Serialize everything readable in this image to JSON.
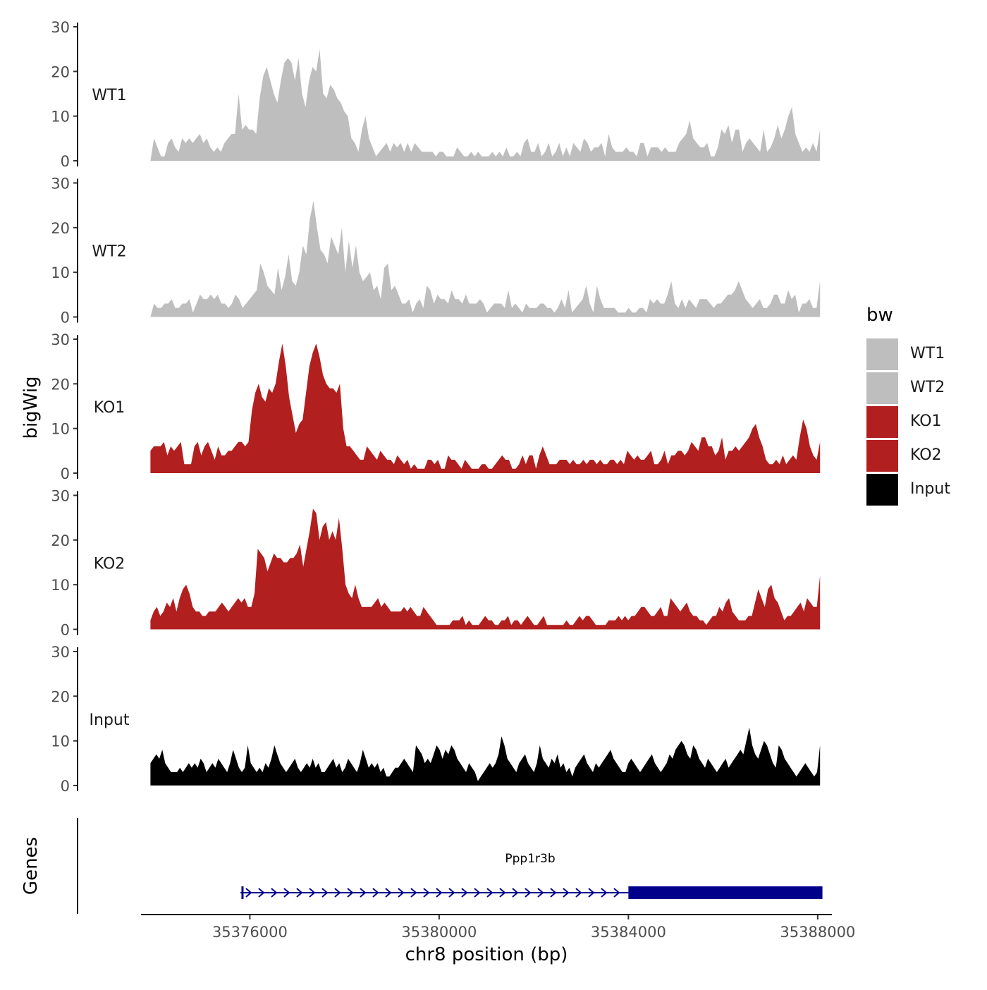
{
  "chart_data": {
    "type": "area",
    "ylabel": "bigWig",
    "xlabel": "chr8 position (bp)",
    "xlim": [
      35373700,
      35388300
    ],
    "x_ticks": [
      35376000,
      35380000,
      35384000,
      35388000
    ],
    "x_tick_labels": [
      "35376000",
      "35380000",
      "35384000",
      "35388000"
    ],
    "ylim": [
      0,
      30
    ],
    "y_ticks": [
      0,
      10,
      20,
      30
    ],
    "y_tick_labels": [
      "0",
      "10",
      "20",
      "30"
    ],
    "track_start": 35373900,
    "track_end": 35388050,
    "tracks": [
      {
        "name": "WT1",
        "color": "#bebebe",
        "values": [
          0,
          5,
          3,
          1,
          1,
          4,
          5,
          3,
          2,
          5,
          4,
          5,
          4,
          5,
          6,
          4,
          5,
          3,
          2,
          3,
          2,
          4,
          5,
          6,
          6,
          15,
          7,
          8,
          7,
          7,
          6,
          14,
          19,
          21,
          18,
          15,
          13,
          18,
          22,
          23,
          22,
          18,
          23,
          15,
          12,
          18,
          21,
          20,
          25,
          15,
          14,
          17,
          16,
          14,
          13,
          11,
          10,
          5,
          4,
          2,
          7,
          10,
          5,
          3,
          1,
          2,
          3,
          4,
          2,
          4,
          3,
          4,
          2,
          4,
          2,
          4,
          3,
          2,
          2,
          2,
          2,
          1,
          2,
          2,
          1,
          1,
          1,
          3,
          2,
          1,
          1,
          2,
          1,
          2,
          1,
          1,
          1,
          2,
          1,
          2,
          1,
          3,
          1,
          1,
          2,
          1,
          4,
          5,
          2,
          2,
          4,
          1,
          2,
          4,
          1,
          2,
          4,
          1,
          3,
          1,
          4,
          3,
          2,
          5,
          4,
          2,
          3,
          3,
          4,
          1,
          6,
          3,
          2,
          2,
          2,
          3,
          2,
          2,
          1,
          4,
          4,
          1,
          3,
          3,
          3,
          2,
          3,
          2,
          2,
          2,
          4,
          5,
          6,
          9,
          5,
          4,
          3,
          3,
          4,
          1,
          1,
          3,
          7,
          6,
          8,
          4,
          7,
          7,
          2,
          4,
          5,
          4,
          3,
          2,
          7,
          2,
          3,
          5,
          8,
          5,
          7,
          10,
          12,
          6,
          4,
          2,
          3,
          2,
          4,
          2,
          7
        ]
      },
      {
        "name": "WT2",
        "color": "#bebebe",
        "values": [
          0,
          3,
          2,
          2,
          3,
          3,
          4,
          2,
          2,
          3,
          3,
          4,
          1,
          3,
          5,
          4,
          4,
          5,
          4,
          5,
          3,
          3,
          2,
          3,
          5,
          4,
          2,
          3,
          4,
          5,
          6,
          12,
          10,
          7,
          6,
          5,
          11,
          6,
          9,
          14,
          8,
          7,
          10,
          16,
          14,
          22,
          26,
          20,
          15,
          14,
          12,
          18,
          16,
          14,
          20,
          10,
          17,
          11,
          16,
          10,
          8,
          9,
          10,
          6,
          7,
          4,
          11,
          12,
          6,
          7,
          5,
          3,
          3,
          4,
          1,
          3,
          4,
          2,
          7,
          6,
          3,
          5,
          4,
          4,
          3,
          6,
          4,
          4,
          3,
          5,
          3,
          3,
          3,
          4,
          3,
          1,
          2,
          3,
          3,
          3,
          2,
          6,
          2,
          3,
          2,
          1,
          3,
          2,
          2,
          2,
          3,
          3,
          2,
          2,
          1,
          2,
          4,
          2,
          6,
          1,
          2,
          3,
          4,
          7,
          3,
          1,
          7,
          4,
          2,
          2,
          2,
          2,
          1,
          1,
          1,
          2,
          1,
          1,
          2,
          2,
          1,
          4,
          3,
          4,
          3,
          3,
          5,
          8,
          3,
          2,
          4,
          2,
          4,
          3,
          2,
          4,
          4,
          4,
          3,
          2,
          3,
          3,
          4,
          5,
          5,
          6,
          8,
          6,
          4,
          3,
          2,
          3,
          4,
          2,
          2,
          3,
          5,
          5,
          3,
          3,
          6,
          4,
          5,
          1,
          3,
          3,
          4,
          2,
          2,
          8
        ]
      },
      {
        "name": "KO1",
        "color": "#b21f1f",
        "values": [
          5,
          6,
          6,
          6,
          7,
          4,
          6,
          5,
          6,
          7,
          2,
          2,
          2,
          6,
          7,
          4,
          6,
          7,
          5,
          3,
          6,
          4,
          4,
          5,
          5,
          6,
          7,
          7,
          6,
          7,
          14,
          18,
          20,
          17,
          16,
          19,
          18,
          20,
          25,
          29,
          24,
          17,
          13,
          9,
          11,
          12,
          18,
          24,
          27,
          29,
          26,
          22,
          20,
          19,
          19,
          18,
          20,
          10,
          6,
          6,
          5,
          4,
          3,
          3,
          6,
          5,
          4,
          3,
          5,
          4,
          3,
          3,
          2,
          4,
          3,
          2,
          3,
          1,
          2,
          1,
          1,
          1,
          3,
          3,
          2,
          3,
          1,
          1,
          4,
          3,
          3,
          2,
          1,
          3,
          2,
          1,
          1,
          1,
          2,
          2,
          1,
          1,
          2,
          3,
          4,
          3,
          3,
          1,
          1,
          2,
          4,
          2,
          4,
          4,
          1,
          4,
          6,
          4,
          2,
          2,
          2,
          3,
          3,
          3,
          2,
          3,
          2,
          2,
          3,
          2,
          3,
          3,
          2,
          3,
          2,
          2,
          3,
          3,
          2,
          3,
          2,
          5,
          4,
          3,
          4,
          3,
          3,
          4,
          5,
          2,
          2,
          3,
          5,
          2,
          4,
          4,
          5,
          5,
          4,
          5,
          7,
          6,
          5,
          8,
          8,
          6,
          6,
          4,
          5,
          8,
          3,
          5,
          5,
          6,
          5,
          6,
          7,
          8,
          10,
          11,
          8,
          6,
          3,
          2,
          2,
          3,
          2,
          4,
          2,
          3,
          4,
          3,
          8,
          12,
          10,
          6,
          4,
          3,
          7
        ]
      },
      {
        "name": "KO2",
        "color": "#b21f1f",
        "values": [
          2,
          4,
          5,
          3,
          4,
          6,
          5,
          7,
          4,
          7,
          9,
          10,
          8,
          5,
          4,
          4,
          3,
          3,
          4,
          4,
          4,
          5,
          6,
          5,
          4,
          5,
          6,
          7,
          6,
          7,
          5,
          5,
          8,
          18,
          17,
          16,
          13,
          15,
          17,
          16,
          16,
          15,
          15,
          16,
          16,
          17,
          19,
          14,
          18,
          22,
          27,
          26,
          20,
          23,
          24,
          20,
          22,
          20,
          25,
          18,
          10,
          8,
          7,
          10,
          7,
          5,
          5,
          5,
          5,
          6,
          7,
          5,
          6,
          5,
          4,
          4,
          4,
          4,
          5,
          4,
          5,
          4,
          3,
          3,
          5,
          4,
          3,
          2,
          1,
          1,
          1,
          1,
          1,
          2,
          2,
          2,
          3,
          1,
          2,
          1,
          1,
          1,
          2,
          3,
          2,
          2,
          1,
          1,
          2,
          2,
          3,
          1,
          2,
          2,
          1,
          2,
          3,
          2,
          1,
          1,
          2,
          3,
          1,
          1,
          1,
          1,
          1,
          1,
          2,
          1,
          1,
          2,
          3,
          2,
          3,
          3,
          2,
          1,
          1,
          1,
          1,
          2,
          2,
          2,
          3,
          2,
          3,
          2,
          3,
          3,
          4,
          5,
          5,
          4,
          3,
          3,
          4,
          5,
          3,
          3,
          7,
          6,
          5,
          4,
          5,
          6,
          4,
          3,
          3,
          2,
          2,
          1,
          2,
          3,
          3,
          5,
          4,
          6,
          7,
          4,
          3,
          2,
          2,
          2,
          3,
          3,
          6,
          9,
          7,
          5,
          9,
          10,
          7,
          6,
          4,
          2,
          3,
          3,
          4,
          5,
          6,
          4,
          7,
          6,
          5,
          5,
          12
        ]
      },
      {
        "name": "Input",
        "color": "#000000",
        "values": [
          5,
          6,
          7,
          6,
          8,
          5,
          4,
          3,
          3,
          3,
          4,
          3,
          4,
          5,
          4,
          5,
          4,
          6,
          5,
          3,
          4,
          5,
          4,
          6,
          5,
          4,
          3,
          5,
          8,
          6,
          4,
          3,
          4,
          9,
          5,
          4,
          3,
          4,
          3,
          5,
          4,
          6,
          9,
          7,
          5,
          4,
          3,
          4,
          5,
          6,
          4,
          3,
          4,
          5,
          4,
          6,
          4,
          5,
          3,
          3,
          4,
          5,
          6,
          4,
          5,
          3,
          4,
          6,
          5,
          4,
          3,
          5,
          8,
          6,
          4,
          5,
          4,
          5,
          3,
          4,
          2,
          2,
          3,
          4,
          4,
          5,
          6,
          5,
          4,
          3,
          9,
          8,
          7,
          5,
          6,
          5,
          7,
          9,
          8,
          6,
          8,
          7,
          9,
          8,
          6,
          5,
          4,
          3,
          5,
          4,
          3,
          1,
          2,
          3,
          4,
          5,
          4,
          5,
          7,
          11,
          9,
          6,
          5,
          4,
          3,
          5,
          6,
          7,
          5,
          4,
          3,
          5,
          9,
          6,
          5,
          4,
          6,
          5,
          7,
          4,
          5,
          3,
          4,
          2,
          4,
          5,
          6,
          7,
          5,
          4,
          3,
          5,
          4,
          5,
          6,
          7,
          8,
          6,
          5,
          4,
          3,
          3,
          5,
          6,
          5,
          4,
          3,
          4,
          5,
          6,
          7,
          5,
          4,
          3,
          4,
          5,
          7,
          6,
          8,
          9,
          10,
          9,
          7,
          6,
          9,
          8,
          6,
          5,
          4,
          6,
          5,
          4,
          3,
          4,
          5,
          6,
          4,
          5,
          6,
          7,
          8,
          7,
          10,
          13,
          9,
          7,
          6,
          8,
          10,
          9,
          7,
          5,
          4,
          9,
          8,
          6,
          5,
          4,
          3,
          2,
          3,
          4,
          5,
          4,
          3,
          2,
          3,
          9
        ]
      }
    ],
    "gene_track": {
      "label": "Genes",
      "gene_name": "Ppp1r3b",
      "strand": "+",
      "color": "#00008b",
      "intron_start": 35375800,
      "cds_start": 35384000,
      "cds_end": 35388100
    },
    "legend": {
      "title": "bw",
      "position": "right",
      "items": [
        {
          "label": "WT1",
          "color": "#bebebe"
        },
        {
          "label": "WT2",
          "color": "#bebebe"
        },
        {
          "label": "KO1",
          "color": "#b21f1f"
        },
        {
          "label": "KO2",
          "color": "#b21f1f"
        },
        {
          "label": "Input",
          "color": "#000000"
        }
      ]
    }
  }
}
